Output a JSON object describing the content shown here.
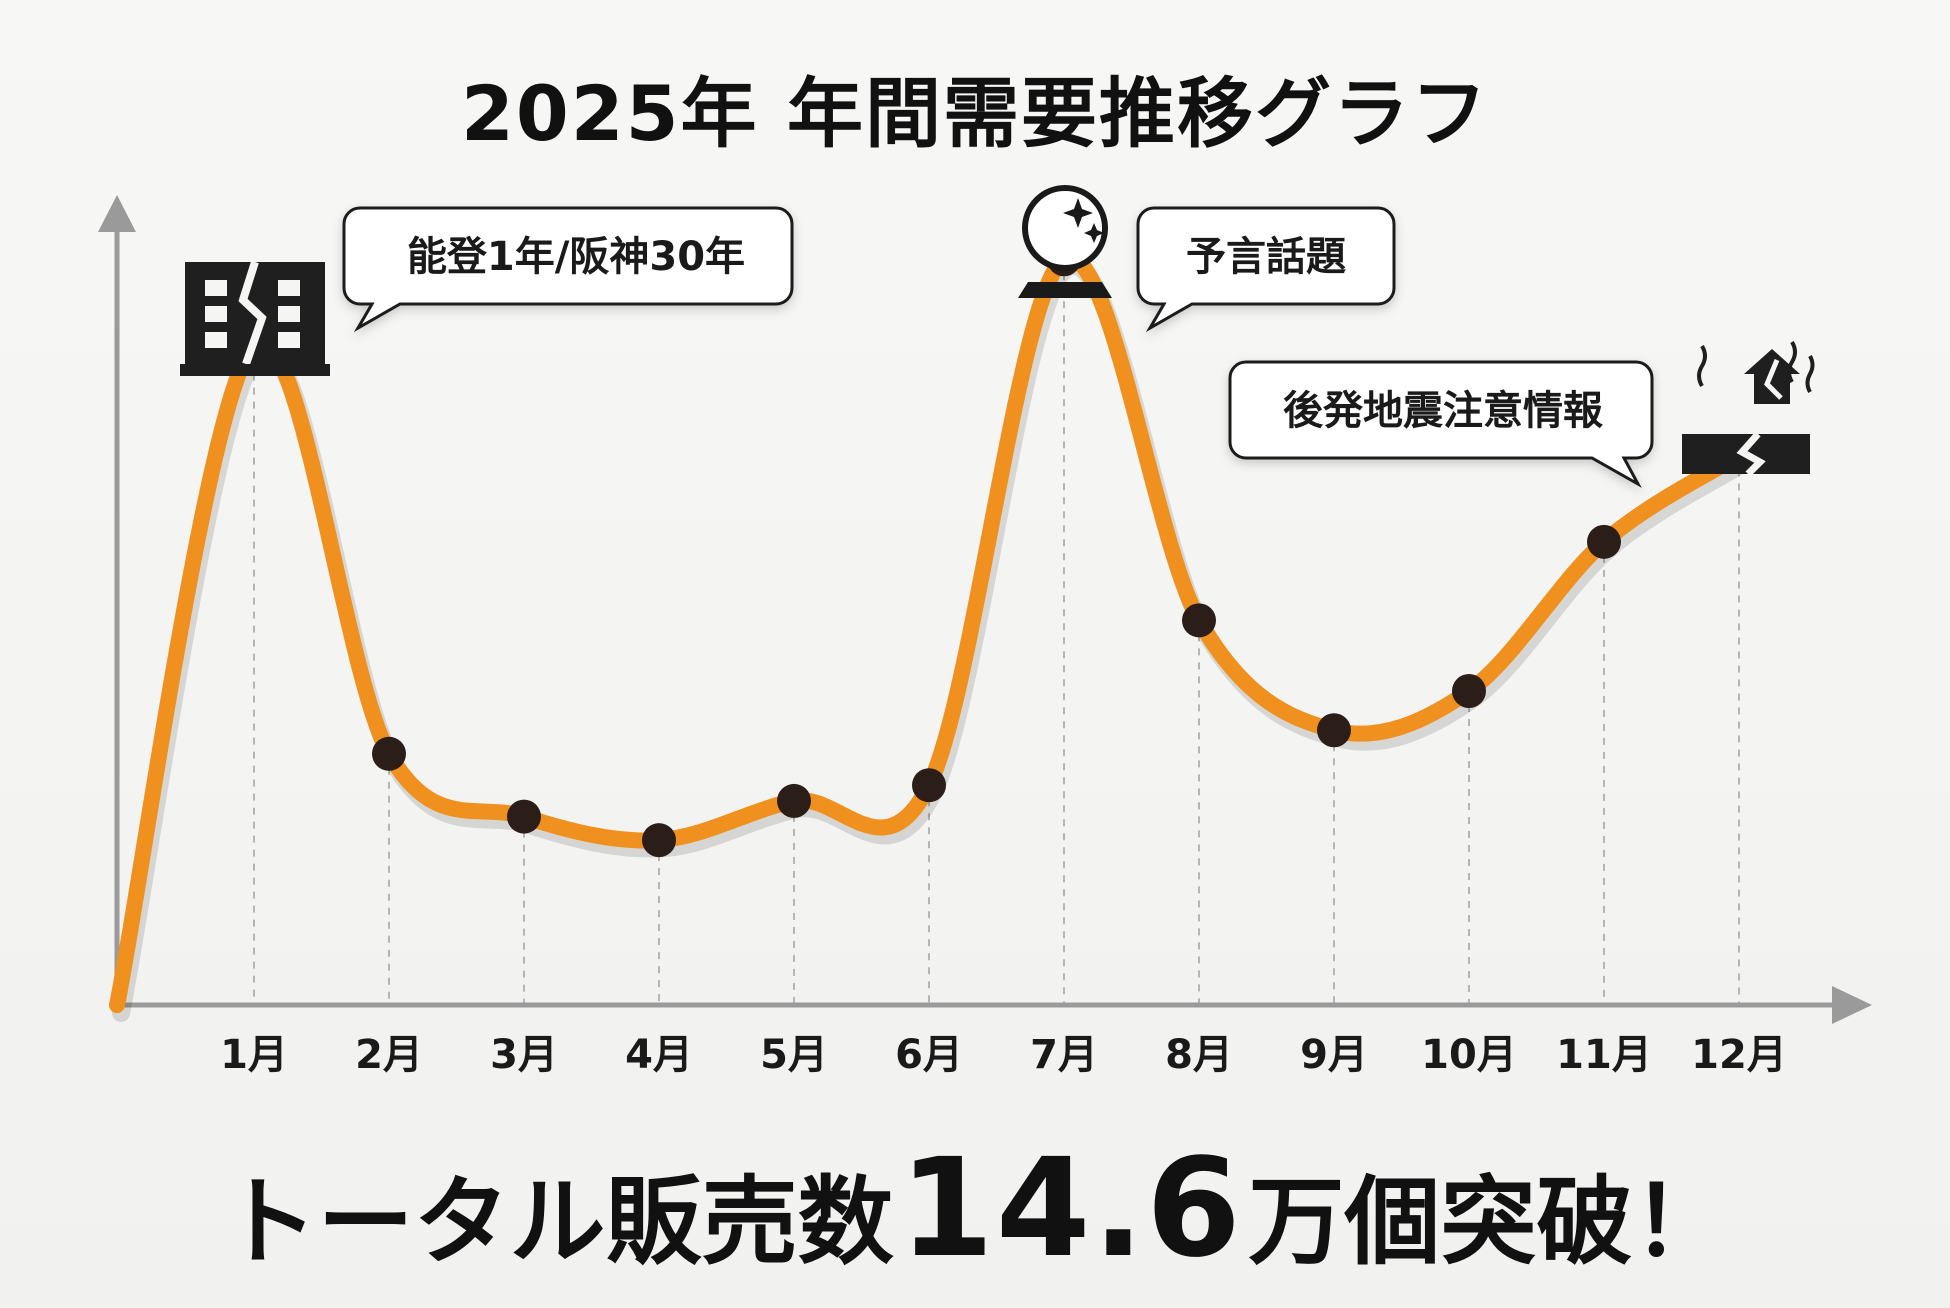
{
  "title": "2025年 年間需要推移グラフ",
  "chart_data": {
    "type": "line",
    "categories": [
      "1月",
      "2月",
      "3月",
      "4月",
      "5月",
      "6月",
      "7月",
      "8月",
      "9月",
      "10月",
      "11月",
      "12月"
    ],
    "series": [
      {
        "values": [
          84,
          32,
          24,
          21,
          26,
          28,
          95,
          49,
          35,
          40,
          59,
          70
        ]
      }
    ],
    "ylim": [
      0,
      100
    ],
    "grid": "vertical dashed guides",
    "line_color": "#f0901e",
    "marker_color": "#2b1d17",
    "annotations": [
      {
        "category": "1月",
        "text": "能登1年/阪神30年",
        "icon": "cracked-building-icon"
      },
      {
        "category": "7月",
        "text": "予言話題",
        "icon": "crystal-ball-icon"
      },
      {
        "category": "12月",
        "text": "後発地震注意情報",
        "icon": "earthquake-house-icon"
      }
    ]
  },
  "footer": {
    "prefix": "トータル販売数",
    "number": "14.6",
    "suffix": "万個突破！"
  }
}
